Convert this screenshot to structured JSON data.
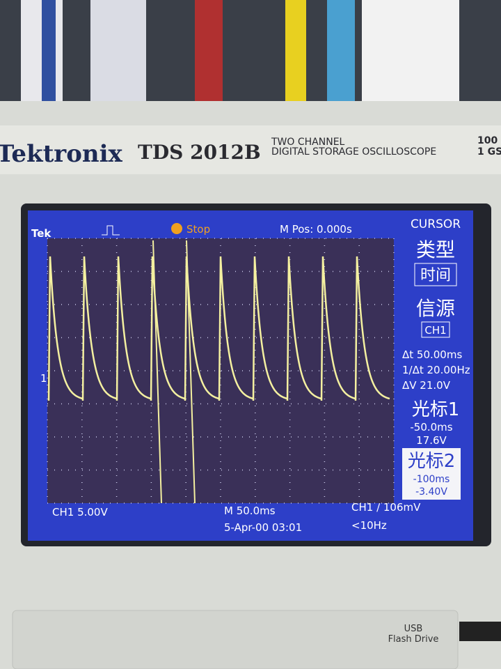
{
  "bezel": {
    "brand": "Tektronix",
    "model": "TDS 2012B",
    "line1": "TWO CHANNEL",
    "line2": "DIGITAL STORAGE OSCILLOSCOPE",
    "spec1": "100",
    "spec2": "1 GS"
  },
  "screen": {
    "top": {
      "logo": "Tek",
      "status": "Stop",
      "position": "M Pos: 0.000s"
    },
    "marker": "1",
    "menu": {
      "title": "CURSOR",
      "type_label": "类型",
      "type_value": "时间",
      "source_label": "信源",
      "source_value": "CH1",
      "delta_t": "Δt 50.00ms",
      "inv_delta_t": "1/Δt 20.00Hz",
      "delta_v": "ΔV 21.0V",
      "cursor1": {
        "label": "光标1",
        "time": "-50.0ms",
        "volts": "17.6V"
      },
      "cursor2": {
        "label": "光标2",
        "time": "-100ms",
        "volts": "-3.40V"
      }
    },
    "bottom": {
      "channel": "CH1  5.00V",
      "timebase": "M 50.0ms",
      "trigger": "CH1 ∕ 106mV",
      "date": "5-Apr-00 03:01",
      "frequency": "<10Hz"
    }
  },
  "usb": {
    "line1": "USB",
    "line2": "Flash Drive"
  }
}
